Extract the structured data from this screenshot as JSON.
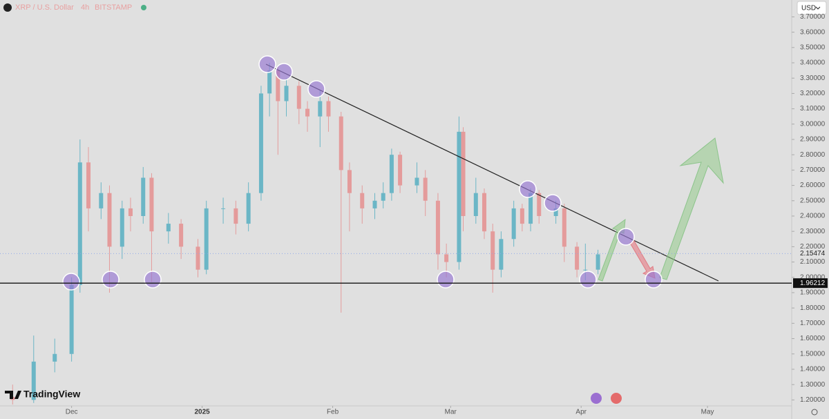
{
  "chart_data": {
    "type": "candlestick",
    "title": "XRP / U.S. Dollar",
    "interval": "4h",
    "exchange": "BITSTAMP",
    "currency": "USD",
    "brand": "TradingView",
    "up_color": "#6bb6c6",
    "down_color": "#e49b9b",
    "x": [
      -14,
      -9,
      -4,
      0,
      2,
      4,
      7,
      9,
      12,
      14,
      17,
      19,
      23,
      26,
      30,
      32,
      36,
      39,
      42,
      45,
      47,
      49,
      51,
      54,
      56,
      59,
      61,
      64,
      66,
      69,
      72,
      74,
      76,
      78,
      82,
      84,
      87,
      89,
      92,
      93,
      96,
      98,
      100,
      102,
      105,
      107,
      109,
      111,
      115,
      117,
      120,
      122,
      125
    ],
    "open": [
      1.22,
      1.2,
      1.45,
      1.5,
      1.95,
      2.75,
      2.45,
      2.55,
      2.2,
      2.45,
      2.4,
      2.65,
      2.3,
      2.35,
      2.2,
      2.05,
      2.45,
      2.45,
      2.35,
      2.55,
      3.2,
      3.35,
      3.15,
      3.25,
      3.1,
      3.05,
      3.15,
      3.05,
      2.7,
      2.55,
      2.45,
      2.5,
      2.55,
      2.8,
      2.6,
      2.65,
      2.5,
      2.15,
      2.1,
      2.95,
      2.4,
      2.55,
      2.3,
      2.05,
      2.25,
      2.45,
      2.35,
      2.55,
      2.4,
      2.45,
      2.2,
      2.05,
      2.05
    ],
    "high": [
      1.3,
      1.62,
      1.6,
      2.0,
      2.9,
      2.85,
      2.62,
      2.6,
      2.5,
      2.52,
      2.72,
      2.68,
      2.42,
      2.38,
      2.25,
      2.5,
      2.52,
      2.5,
      2.62,
      3.25,
      3.4,
      3.38,
      3.3,
      3.28,
      3.15,
      3.22,
      3.18,
      3.08,
      2.75,
      2.6,
      2.55,
      2.62,
      2.84,
      2.82,
      2.75,
      2.7,
      2.55,
      2.22,
      3.05,
      2.98,
      2.65,
      2.58,
      2.35,
      2.3,
      2.5,
      2.48,
      2.58,
      2.57,
      2.5,
      2.48,
      2.23,
      2.22,
      2.18
    ],
    "low": [
      1.17,
      1.18,
      1.38,
      1.45,
      1.9,
      2.3,
      2.38,
      1.9,
      2.12,
      2.3,
      2.35,
      1.97,
      2.22,
      2.12,
      2.0,
      2.02,
      2.35,
      2.28,
      2.3,
      2.5,
      3.05,
      2.8,
      3.05,
      3.0,
      2.95,
      2.85,
      2.95,
      1.77,
      2.3,
      2.35,
      2.38,
      2.45,
      2.5,
      2.55,
      2.55,
      2.4,
      2.05,
      2.0,
      2.05,
      2.3,
      2.35,
      2.25,
      1.9,
      2.0,
      2.2,
      2.3,
      2.3,
      2.35,
      2.35,
      2.1,
      2.0,
      1.98,
      2.02
    ],
    "close": [
      1.2,
      1.45,
      1.5,
      1.95,
      2.75,
      2.45,
      2.55,
      2.2,
      2.45,
      2.4,
      2.65,
      2.3,
      2.35,
      2.2,
      2.05,
      2.45,
      2.45,
      2.35,
      2.55,
      3.2,
      3.35,
      3.15,
      3.25,
      3.1,
      3.05,
      3.15,
      3.05,
      2.7,
      2.55,
      2.45,
      2.5,
      2.55,
      2.8,
      2.6,
      2.65,
      2.5,
      2.15,
      2.1,
      2.95,
      2.4,
      2.55,
      2.3,
      2.05,
      2.25,
      2.45,
      2.35,
      2.55,
      2.4,
      2.45,
      2.2,
      2.05,
      2.05,
      2.15
    ],
    "xlim": [
      -17,
      171
    ],
    "xticks": [
      {
        "value": 0,
        "label": "Dec"
      },
      {
        "value": 31,
        "label": "2025"
      },
      {
        "value": 62,
        "label": "Feb"
      },
      {
        "value": 90,
        "label": "Mar"
      },
      {
        "value": 121,
        "label": "Apr"
      },
      {
        "value": 151,
        "label": "May"
      }
    ],
    "ylim": [
      1.161,
      3.81
    ],
    "yticks": [
      {
        "value": 1.2,
        "label": "1.20000"
      },
      {
        "value": 1.3,
        "label": "1.30000"
      },
      {
        "value": 1.4,
        "label": "1.40000"
      },
      {
        "value": 1.5,
        "label": "1.50000"
      },
      {
        "value": 1.6,
        "label": "1.60000"
      },
      {
        "value": 1.7,
        "label": "1.70000"
      },
      {
        "value": 1.8,
        "label": "1.80000"
      },
      {
        "value": 1.9,
        "label": "1.90000"
      },
      {
        "value": 2.0,
        "label": "2.00000"
      },
      {
        "value": 2.1,
        "label": "2.10000"
      },
      {
        "value": 2.2,
        "label": "2.20000"
      },
      {
        "value": 2.3,
        "label": "2.30000"
      },
      {
        "value": 2.4,
        "label": "2.40000"
      },
      {
        "value": 2.5,
        "label": "2.50000"
      },
      {
        "value": 2.6,
        "label": "2.60000"
      },
      {
        "value": 2.7,
        "label": "2.70000"
      },
      {
        "value": 2.8,
        "label": "2.80000"
      },
      {
        "value": 2.9,
        "label": "2.90000"
      },
      {
        "value": 3.0,
        "label": "3.00000"
      },
      {
        "value": 3.1,
        "label": "3.10000"
      },
      {
        "value": 3.2,
        "label": "3.20000"
      },
      {
        "value": 3.3,
        "label": "3.30000"
      },
      {
        "value": 3.4,
        "label": "3.40000"
      },
      {
        "value": 3.5,
        "label": "3.50000"
      },
      {
        "value": 3.6,
        "label": "3.60000"
      },
      {
        "value": 3.7,
        "label": "3.70000"
      }
    ],
    "support_level": {
      "value": 1.96212,
      "label": "1.96212"
    },
    "last_price": {
      "value": 2.15474,
      "label": "2.15474"
    }
  }
}
